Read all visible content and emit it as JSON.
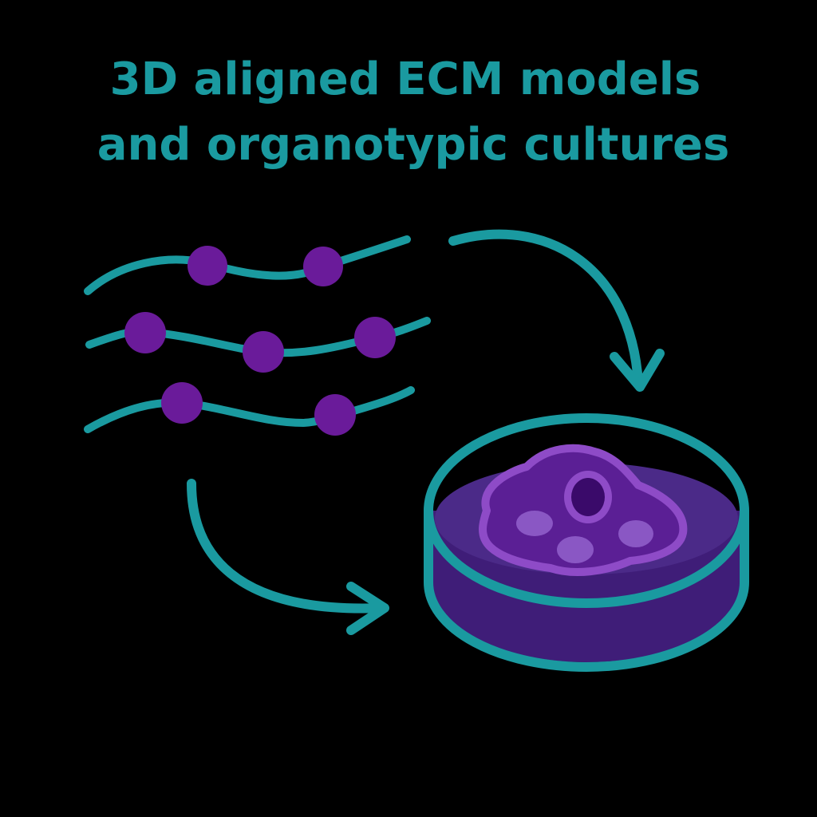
{
  "title": {
    "line1": "3D aligned ECM models",
    "line2": "and organotypic cultures"
  },
  "colors": {
    "background": "#000000",
    "teal": "#1a9aa0",
    "bead": "#6a1b9a",
    "gel_top": "#4b2a88",
    "gel_side": "#3f1d78",
    "cell_body": "#5b1f95",
    "cell_outline": "#8e4bc7",
    "nucleus": "#3a0a6a",
    "nucleus_ring": "#9b59c9",
    "organelle": "#8a57c4"
  },
  "icons": {
    "fibers": "aligned-ecm-fibers-icon",
    "arrow_right_down": "curved-arrow-down-icon",
    "arrow_down_right": "curved-arrow-right-icon",
    "dish": "petri-dish-culture-icon",
    "cell": "cell-icon"
  }
}
